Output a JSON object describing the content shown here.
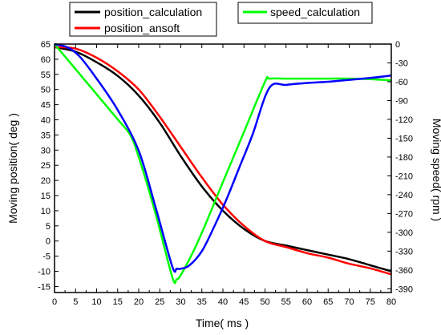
{
  "chart_data": {
    "type": "line",
    "xlabel": "Time( ms )",
    "ylabel": "Moving position( deg )",
    "y2label": "Moving speed( rpm )",
    "xlim": [
      0,
      80
    ],
    "ylim": [
      -17,
      65
    ],
    "y2lim": [
      -396,
      0
    ],
    "x_ticks": [
      0,
      5,
      10,
      15,
      20,
      25,
      30,
      35,
      40,
      45,
      50,
      55,
      60,
      65,
      70,
      75,
      80
    ],
    "y_ticks": [
      65,
      60,
      55,
      50,
      45,
      40,
      35,
      30,
      25,
      20,
      15,
      10,
      5,
      0,
      -5,
      -10,
      -15
    ],
    "y2_ticks": [
      0,
      -30,
      -60,
      -90,
      -120,
      -150,
      -180,
      -210,
      -240,
      -270,
      -300,
      -330,
      -360,
      -390
    ],
    "grid": false,
    "legend": [
      {
        "name": "position_calculation",
        "color": "#000000"
      },
      {
        "name": "position_ansoft",
        "color": "#ff0000"
      },
      {
        "name": "speed_calculation",
        "color": "#00ff00"
      }
    ],
    "series": [
      {
        "name": "position_calculation",
        "axis": "left",
        "color": "#000000",
        "x": [
          0,
          5,
          10,
          15,
          20,
          25,
          30,
          35,
          40,
          45,
          50,
          55,
          60,
          65,
          70,
          75,
          80
        ],
        "values": [
          64,
          62.5,
          59,
          54.5,
          48,
          39,
          28,
          18,
          10,
          4,
          0,
          -1.5,
          -3,
          -4.5,
          -6,
          -8,
          -10
        ]
      },
      {
        "name": "position_ansoft",
        "axis": "left",
        "color": "#ff0000",
        "x": [
          0,
          5,
          10,
          15,
          20,
          25,
          30,
          35,
          40,
          45,
          50,
          55,
          60,
          65,
          70,
          75,
          80
        ],
        "values": [
          64,
          63.5,
          60.5,
          56,
          50,
          41,
          31,
          21,
          12,
          5,
          0,
          -2,
          -4,
          -5.5,
          -7.5,
          -9,
          -11
        ]
      },
      {
        "name": "speed_calculation",
        "axis": "right",
        "color": "#00ff00",
        "x": [
          0,
          5,
          10,
          15,
          18,
          20,
          24,
          28,
          29,
          30,
          33,
          36,
          40,
          45,
          50,
          51,
          55,
          60,
          65,
          70,
          75,
          80
        ],
        "values": [
          0,
          -40,
          -80,
          -120,
          -145,
          -180,
          -270,
          -372,
          -375,
          -368,
          -330,
          -285,
          -220,
          -140,
          -60,
          -55,
          -55,
          -55,
          -55,
          -55,
          -56,
          -58
        ]
      },
      {
        "name": "",
        "axis": "right",
        "color": "#0000ff",
        "x": [
          0,
          3,
          6,
          10,
          15,
          20,
          24,
          28,
          29,
          30,
          32,
          35,
          38,
          41,
          44,
          47,
          51,
          55,
          60,
          65,
          70,
          75,
          80
        ],
        "values": [
          0,
          -5,
          -20,
          -55,
          -105,
          -170,
          -260,
          -355,
          -358,
          -358,
          -353,
          -330,
          -290,
          -245,
          -195,
          -145,
          -70,
          -65,
          -62,
          -60,
          -57,
          -54,
          -50
        ]
      }
    ]
  }
}
